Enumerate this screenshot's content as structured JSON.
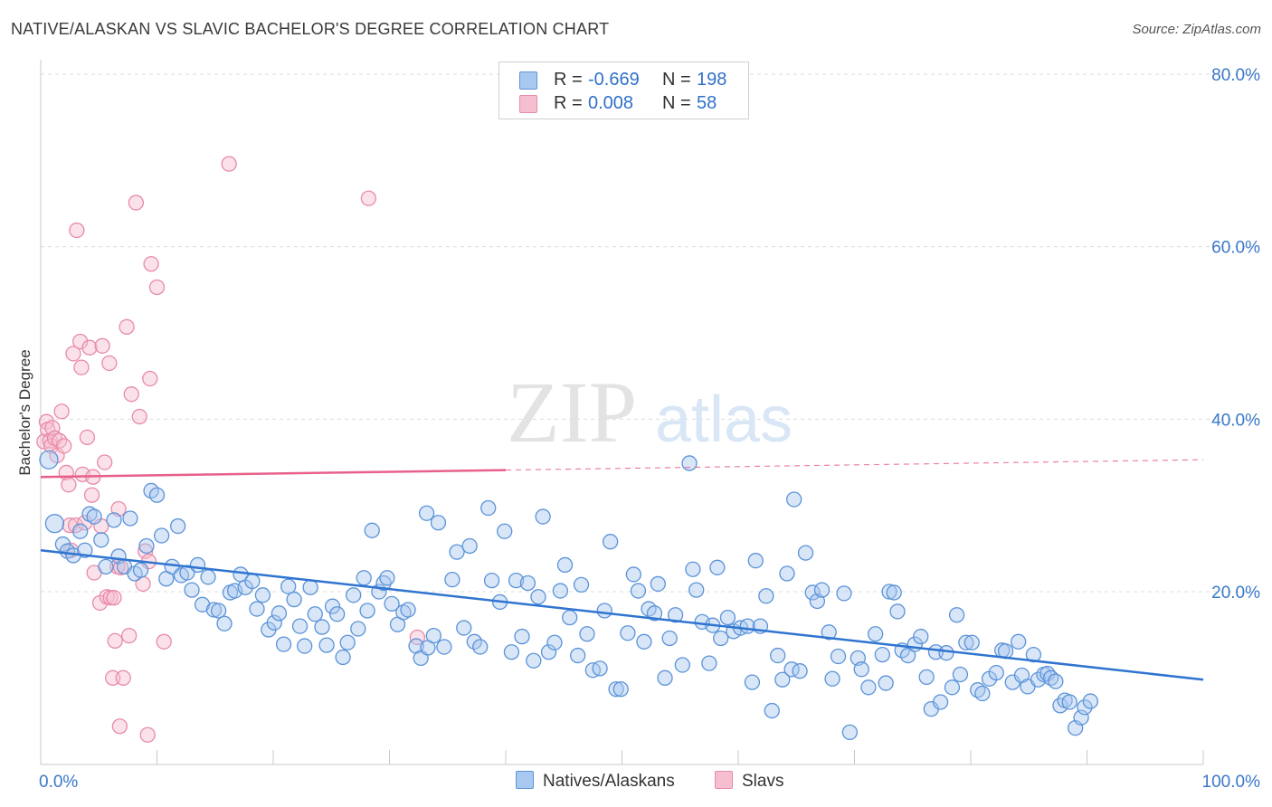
{
  "title": "NATIVE/ALASKAN VS SLAVIC BACHELOR'S DEGREE CORRELATION CHART",
  "source": "Source: ZipAtlas.com",
  "watermark": {
    "zip": "ZIP",
    "atlas": "atlas"
  },
  "legend_top": {
    "rows": [
      {
        "r_label": "R =",
        "r_value": "-0.669",
        "n_label": "N =",
        "n_value": "198"
      },
      {
        "r_label": "R =",
        "r_value": "0.008",
        "n_label": "N =",
        "n_value": "58"
      }
    ]
  },
  "legend_bottom": [
    "Natives/Alaskans",
    "Slavs"
  ],
  "colors": {
    "blue_fill": "#a9c8f0",
    "blue_stroke": "#5b93d8",
    "blue_line": "#2f74d0",
    "pink_fill": "#f6bfd0",
    "pink_stroke": "#e88aa8",
    "pink_line": "#e8608a",
    "tick_label": "#3a78c8",
    "grid": "#dcdcdc"
  },
  "chart_data": {
    "type": "scatter",
    "title": "NATIVE/ALASKAN VS SLAVIC BACHELOR'S DEGREE CORRELATION CHART",
    "xlabel": "",
    "ylabel": "Bachelor's Degree",
    "xlim": [
      0,
      100
    ],
    "ylim": [
      0,
      82
    ],
    "x_tick_labels": [
      {
        "value": 0,
        "label": "0.0%"
      },
      {
        "value": 100,
        "label": "100.0%"
      }
    ],
    "y_tick_labels": [
      {
        "value": 20,
        "label": "20.0%"
      },
      {
        "value": 40,
        "label": "40.0%"
      },
      {
        "value": 60,
        "label": "60.0%"
      },
      {
        "value": 80,
        "label": "80.0%"
      }
    ],
    "grid": true,
    "series": [
      {
        "name": "Natives/Alaskans",
        "r": -0.669,
        "n": 198,
        "trend": {
          "x0": 0,
          "y0": 24.8,
          "x1": 100,
          "y1": 9.8
        },
        "points": [
          [
            0.7,
            35.3
          ],
          [
            1.2,
            27.9
          ],
          [
            1.9,
            25.5
          ],
          [
            2.3,
            24.7
          ],
          [
            2.8,
            24.2
          ],
          [
            3.4,
            27.0
          ],
          [
            3.8,
            24.8
          ],
          [
            4.2,
            29.0
          ],
          [
            4.6,
            28.7
          ],
          [
            5.2,
            26.0
          ],
          [
            5.6,
            22.9
          ],
          [
            6.3,
            28.3
          ],
          [
            6.7,
            24.1
          ],
          [
            7.2,
            22.9
          ],
          [
            7.7,
            28.5
          ],
          [
            8.1,
            22.1
          ],
          [
            8.6,
            22.5
          ],
          [
            9.1,
            25.3
          ],
          [
            9.5,
            31.7
          ],
          [
            10.0,
            31.2
          ],
          [
            10.4,
            26.5
          ],
          [
            10.8,
            21.5
          ],
          [
            11.3,
            22.9
          ],
          [
            11.8,
            27.6
          ],
          [
            12.1,
            21.9
          ],
          [
            12.6,
            22.2
          ],
          [
            13.0,
            20.2
          ],
          [
            13.5,
            23.1
          ],
          [
            13.9,
            18.5
          ],
          [
            14.4,
            21.7
          ],
          [
            14.9,
            17.9
          ],
          [
            15.3,
            17.8
          ],
          [
            15.8,
            16.3
          ],
          [
            16.3,
            19.9
          ],
          [
            16.7,
            20.1
          ],
          [
            17.2,
            22.0
          ],
          [
            17.6,
            20.5
          ],
          [
            18.2,
            21.2
          ],
          [
            18.6,
            18.0
          ],
          [
            19.1,
            19.6
          ],
          [
            19.6,
            15.6
          ],
          [
            20.1,
            16.4
          ],
          [
            20.5,
            17.5
          ],
          [
            20.9,
            13.9
          ],
          [
            21.3,
            20.6
          ],
          [
            21.8,
            19.1
          ],
          [
            22.3,
            16.0
          ],
          [
            22.7,
            13.7
          ],
          [
            23.2,
            20.5
          ],
          [
            23.6,
            17.4
          ],
          [
            24.2,
            15.9
          ],
          [
            24.6,
            13.8
          ],
          [
            25.1,
            18.3
          ],
          [
            25.5,
            17.4
          ],
          [
            26.0,
            12.4
          ],
          [
            26.4,
            14.1
          ],
          [
            26.9,
            19.6
          ],
          [
            27.3,
            15.7
          ],
          [
            27.8,
            21.6
          ],
          [
            28.1,
            17.8
          ],
          [
            28.5,
            27.1
          ],
          [
            29.1,
            20.0
          ],
          [
            29.5,
            21.0
          ],
          [
            29.8,
            21.6
          ],
          [
            30.2,
            18.6
          ],
          [
            30.7,
            16.2
          ],
          [
            31.2,
            17.6
          ],
          [
            31.6,
            17.9
          ],
          [
            32.3,
            13.7
          ],
          [
            32.7,
            12.3
          ],
          [
            33.3,
            13.5
          ],
          [
            33.8,
            14.9
          ],
          [
            33.2,
            29.1
          ],
          [
            34.2,
            28.0
          ],
          [
            34.7,
            13.6
          ],
          [
            35.4,
            21.4
          ],
          [
            35.8,
            24.6
          ],
          [
            36.4,
            15.8
          ],
          [
            36.9,
            25.3
          ],
          [
            37.3,
            14.2
          ],
          [
            37.8,
            13.6
          ],
          [
            38.5,
            29.7
          ],
          [
            38.8,
            21.3
          ],
          [
            39.5,
            18.8
          ],
          [
            39.9,
            27.0
          ],
          [
            40.5,
            13.0
          ],
          [
            40.9,
            21.3
          ],
          [
            41.4,
            14.8
          ],
          [
            41.9,
            21.0
          ],
          [
            42.4,
            12.0
          ],
          [
            42.8,
            19.4
          ],
          [
            43.2,
            28.7
          ],
          [
            43.7,
            13.0
          ],
          [
            44.2,
            14.1
          ],
          [
            44.7,
            20.1
          ],
          [
            45.1,
            23.1
          ],
          [
            45.5,
            17.0
          ],
          [
            46.2,
            12.6
          ],
          [
            46.5,
            20.8
          ],
          [
            47.0,
            15.1
          ],
          [
            47.5,
            10.9
          ],
          [
            48.1,
            11.1
          ],
          [
            48.5,
            17.8
          ],
          [
            49.0,
            25.8
          ],
          [
            49.5,
            8.7
          ],
          [
            49.9,
            8.7
          ],
          [
            50.5,
            15.2
          ],
          [
            51.0,
            22.0
          ],
          [
            51.4,
            20.1
          ],
          [
            51.9,
            14.2
          ],
          [
            52.3,
            18.0
          ],
          [
            52.8,
            17.5
          ],
          [
            53.1,
            20.9
          ],
          [
            53.7,
            10.0
          ],
          [
            54.1,
            14.6
          ],
          [
            54.6,
            17.3
          ],
          [
            55.2,
            11.5
          ],
          [
            55.8,
            34.9
          ],
          [
            56.1,
            22.6
          ],
          [
            56.4,
            20.2
          ],
          [
            56.9,
            16.5
          ],
          [
            57.5,
            11.7
          ],
          [
            57.8,
            16.1
          ],
          [
            58.2,
            22.8
          ],
          [
            58.5,
            14.6
          ],
          [
            59.1,
            17.0
          ],
          [
            59.6,
            15.4
          ],
          [
            60.2,
            15.8
          ],
          [
            60.8,
            16.0
          ],
          [
            61.2,
            9.5
          ],
          [
            61.5,
            23.6
          ],
          [
            61.9,
            16.0
          ],
          [
            62.4,
            19.5
          ],
          [
            62.9,
            6.2
          ],
          [
            63.4,
            12.6
          ],
          [
            63.8,
            9.8
          ],
          [
            64.2,
            22.1
          ],
          [
            64.6,
            11.0
          ],
          [
            64.8,
            30.7
          ],
          [
            65.3,
            10.8
          ],
          [
            65.8,
            24.5
          ],
          [
            66.4,
            19.9
          ],
          [
            66.8,
            18.9
          ],
          [
            67.2,
            20.2
          ],
          [
            67.8,
            15.3
          ],
          [
            68.1,
            9.9
          ],
          [
            68.6,
            12.5
          ],
          [
            69.1,
            19.8
          ],
          [
            69.6,
            3.7
          ],
          [
            70.3,
            12.3
          ],
          [
            70.6,
            11.0
          ],
          [
            71.2,
            8.9
          ],
          [
            71.8,
            15.1
          ],
          [
            72.4,
            12.7
          ],
          [
            72.7,
            9.4
          ],
          [
            73.0,
            20.0
          ],
          [
            73.4,
            19.9
          ],
          [
            73.7,
            17.7
          ],
          [
            74.1,
            13.2
          ],
          [
            74.6,
            12.6
          ],
          [
            75.2,
            13.9
          ],
          [
            75.7,
            14.8
          ],
          [
            76.2,
            10.1
          ],
          [
            76.6,
            6.4
          ],
          [
            77.0,
            13.0
          ],
          [
            77.4,
            7.2
          ],
          [
            77.9,
            12.9
          ],
          [
            78.4,
            8.9
          ],
          [
            78.8,
            17.3
          ],
          [
            79.1,
            10.4
          ],
          [
            79.6,
            14.1
          ],
          [
            80.1,
            14.1
          ],
          [
            80.6,
            8.6
          ],
          [
            81.0,
            8.2
          ],
          [
            81.6,
            9.9
          ],
          [
            82.2,
            10.6
          ],
          [
            82.7,
            13.2
          ],
          [
            83.0,
            13.1
          ],
          [
            83.6,
            9.5
          ],
          [
            84.1,
            14.2
          ],
          [
            84.4,
            10.3
          ],
          [
            84.9,
            9.0
          ],
          [
            85.4,
            12.7
          ],
          [
            85.8,
            9.8
          ],
          [
            86.3,
            10.4
          ],
          [
            86.6,
            10.5
          ],
          [
            86.9,
            10.0
          ],
          [
            87.3,
            9.6
          ],
          [
            87.7,
            6.8
          ],
          [
            88.1,
            7.4
          ],
          [
            88.5,
            7.2
          ],
          [
            89.0,
            4.2
          ],
          [
            89.5,
            5.4
          ],
          [
            89.8,
            6.6
          ],
          [
            90.3,
            7.3
          ]
        ]
      },
      {
        "name": "Slavs",
        "r": 0.008,
        "n": 58,
        "trend_solid": {
          "x0": 0,
          "y0": 33.3,
          "x1": 40,
          "y1": 34.1
        },
        "trend_dashed": {
          "x0": 40,
          "y0": 34.1,
          "x1": 100,
          "y1": 35.3
        },
        "points": [
          [
            0.3,
            37.4
          ],
          [
            0.5,
            39.7
          ],
          [
            0.6,
            38.8
          ],
          [
            0.8,
            37.5
          ],
          [
            0.9,
            36.9
          ],
          [
            1.0,
            39.0
          ],
          [
            1.2,
            37.8
          ],
          [
            1.4,
            35.8
          ],
          [
            1.6,
            37.5
          ],
          [
            1.8,
            40.9
          ],
          [
            2.0,
            36.9
          ],
          [
            2.2,
            33.8
          ],
          [
            2.4,
            32.4
          ],
          [
            2.5,
            27.7
          ],
          [
            2.6,
            24.8
          ],
          [
            2.8,
            47.6
          ],
          [
            3.0,
            27.7
          ],
          [
            3.1,
            61.9
          ],
          [
            3.4,
            49.0
          ],
          [
            3.5,
            46.0
          ],
          [
            3.6,
            33.6
          ],
          [
            3.8,
            28.0
          ],
          [
            4.0,
            37.9
          ],
          [
            4.2,
            48.3
          ],
          [
            4.4,
            31.2
          ],
          [
            4.5,
            33.3
          ],
          [
            4.6,
            22.2
          ],
          [
            5.1,
            18.7
          ],
          [
            5.2,
            27.6
          ],
          [
            5.3,
            48.5
          ],
          [
            5.5,
            35.0
          ],
          [
            5.7,
            19.4
          ],
          [
            5.9,
            46.5
          ],
          [
            6.0,
            19.3
          ],
          [
            6.2,
            10.0
          ],
          [
            6.3,
            19.3
          ],
          [
            6.4,
            14.3
          ],
          [
            6.6,
            22.9
          ],
          [
            6.7,
            29.6
          ],
          [
            6.8,
            4.4
          ],
          [
            6.9,
            22.8
          ],
          [
            7.1,
            10.0
          ],
          [
            7.4,
            50.7
          ],
          [
            7.6,
            14.9
          ],
          [
            7.8,
            42.9
          ],
          [
            8.2,
            65.1
          ],
          [
            8.5,
            40.3
          ],
          [
            8.8,
            20.9
          ],
          [
            9.0,
            24.7
          ],
          [
            9.2,
            3.4
          ],
          [
            9.3,
            23.5
          ],
          [
            9.4,
            44.7
          ],
          [
            9.5,
            58.0
          ],
          [
            10.0,
            55.3
          ],
          [
            10.6,
            14.2
          ],
          [
            16.2,
            69.6
          ],
          [
            28.2,
            65.6
          ],
          [
            32.4,
            14.7
          ]
        ]
      }
    ]
  }
}
